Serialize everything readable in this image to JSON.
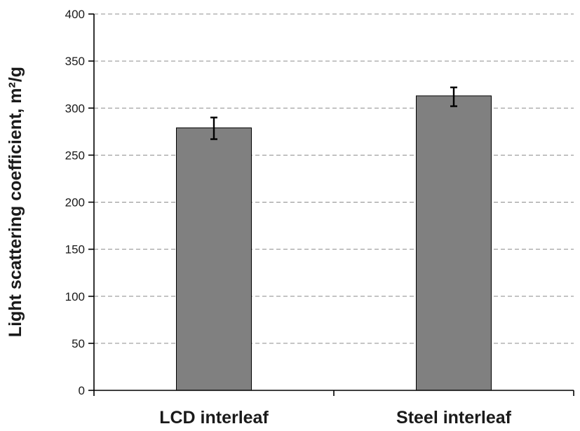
{
  "chart_data": {
    "type": "bar",
    "title": "",
    "xlabel": "",
    "ylabel": "Light scattering coefficient, m²/g",
    "categories": [
      "LCD interleaf",
      "Steel interleaf"
    ],
    "values": [
      279,
      313
    ],
    "error_low": [
      267,
      302
    ],
    "error_high": [
      290,
      322
    ],
    "ylim": [
      0,
      400
    ],
    "yticks": [
      0,
      50,
      100,
      150,
      200,
      250,
      300,
      350,
      400
    ],
    "ytick_labels": [
      "0",
      "50",
      "100",
      "150",
      "200",
      "250",
      "300",
      "350",
      "400"
    ],
    "grid": "horizontal dashed",
    "bar_color": "#808080",
    "error_bar_color": "#000000"
  }
}
